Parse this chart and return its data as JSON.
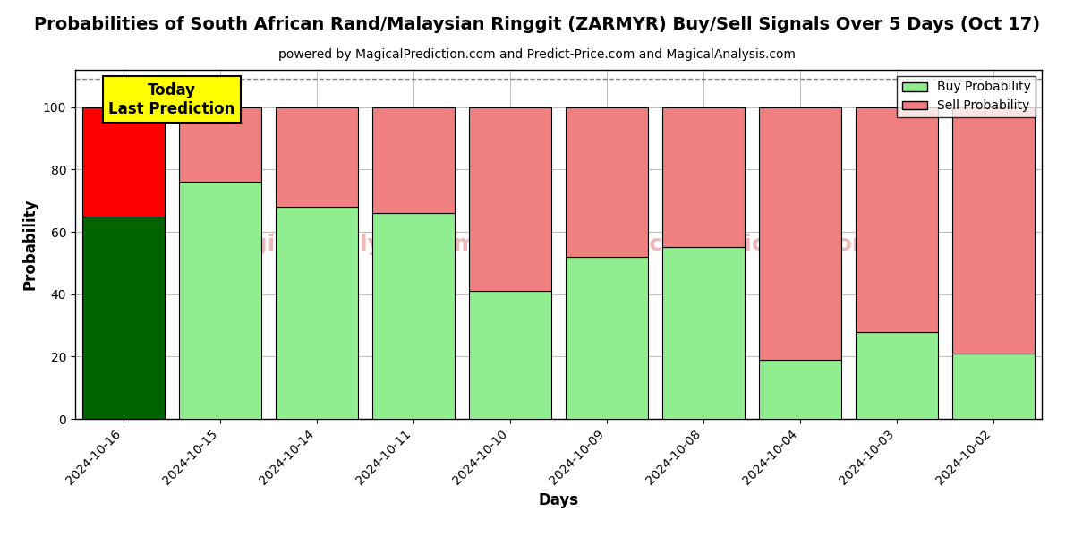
{
  "title": "Probabilities of South African Rand/Malaysian Ringgit (ZARMYR) Buy/Sell Signals Over 5 Days (Oct 17)",
  "subtitle": "powered by MagicalPrediction.com and Predict-Price.com and MagicalAnalysis.com",
  "xlabel": "Days",
  "ylabel": "Probability",
  "categories": [
    "2024-10-16",
    "2024-10-15",
    "2024-10-14",
    "2024-10-11",
    "2024-10-10",
    "2024-10-09",
    "2024-10-08",
    "2024-10-04",
    "2024-10-03",
    "2024-10-02"
  ],
  "buy_values": [
    65,
    76,
    68,
    66,
    41,
    52,
    55,
    19,
    28,
    21
  ],
  "sell_values": [
    35,
    24,
    32,
    34,
    59,
    48,
    45,
    81,
    72,
    79
  ],
  "today_buy_color": "#006400",
  "today_sell_color": "#ff0000",
  "buy_color": "#90EE90",
  "sell_color": "#F08080",
  "today_box_color": "#ffff00",
  "today_box_text": "Today\nLast Prediction",
  "legend_buy_label": "Buy Probability",
  "legend_sell_label": "Sell Probability",
  "ylim": [
    0,
    112
  ],
  "dashed_line_y": 109,
  "background_color": "#ffffff",
  "grid_color": "#bbbbbb",
  "bar_width": 0.85,
  "title_fontsize": 14,
  "subtitle_fontsize": 10,
  "axis_label_fontsize": 12,
  "tick_fontsize": 10
}
